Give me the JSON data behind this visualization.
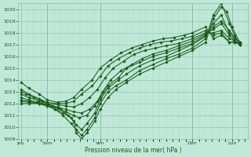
{
  "title": "",
  "xlabel": "Pression niveau de la mer( hPa )",
  "ylim": [
    1009,
    1020.5
  ],
  "yticks": [
    1009,
    1010,
    1011,
    1012,
    1013,
    1014,
    1015,
    1016,
    1017,
    1018,
    1019,
    1020
  ],
  "bg_color": "#c0e8d8",
  "grid_color_minor": "#b0d8c8",
  "grid_color_major": "#90b8a8",
  "line_color": "#1a5c1a",
  "marker": "D",
  "markersize": 1.8,
  "linewidth": 0.75,
  "xtick_labels": [
    "Jeu",
    "Sam",
    "Ven",
    "Dim",
    "Lun"
  ],
  "xtick_x": [
    0.0,
    1.0,
    3.0,
    6.5,
    8.0
  ],
  "vlines": [
    1.0,
    3.0,
    6.5,
    8.0
  ],
  "xlim": [
    -0.1,
    8.6
  ],
  "series": [
    [
      0.0,
      1013.0,
      0.2,
      1012.8,
      0.5,
      1012.5,
      0.8,
      1012.2,
      1.0,
      1012.0,
      1.2,
      1011.8,
      1.5,
      1011.5,
      1.8,
      1011.0,
      2.0,
      1010.5,
      2.1,
      1009.5,
      2.3,
      1009.0,
      2.5,
      1009.5,
      2.8,
      1010.5,
      3.0,
      1011.5,
      3.3,
      1012.5,
      3.6,
      1013.2,
      4.0,
      1013.8,
      4.5,
      1014.5,
      5.0,
      1015.0,
      5.5,
      1015.5,
      6.0,
      1016.0,
      6.5,
      1016.5,
      7.0,
      1017.2,
      7.3,
      1019.2,
      7.6,
      1020.2,
      7.8,
      1019.8,
      8.0,
      1018.5,
      8.3,
      1017.2
    ],
    [
      0.0,
      1012.5,
      0.3,
      1012.3,
      0.6,
      1012.1,
      0.8,
      1012.0,
      1.0,
      1011.9,
      1.3,
      1011.5,
      1.6,
      1011.0,
      1.9,
      1010.3,
      2.1,
      1009.8,
      2.3,
      1009.3,
      2.5,
      1009.8,
      2.8,
      1010.8,
      3.0,
      1012.0,
      3.3,
      1013.0,
      3.6,
      1013.5,
      4.0,
      1014.0,
      4.5,
      1014.8,
      5.0,
      1015.3,
      5.5,
      1015.8,
      6.0,
      1016.2,
      6.5,
      1016.7,
      7.0,
      1017.5,
      7.3,
      1019.5,
      7.6,
      1020.5,
      7.9,
      1018.8,
      8.1,
      1017.8,
      8.3,
      1017.0
    ],
    [
      0.0,
      1012.2,
      0.3,
      1012.1,
      0.7,
      1012.0,
      1.0,
      1011.8,
      1.3,
      1011.5,
      1.6,
      1011.2,
      1.9,
      1010.8,
      2.1,
      1010.2,
      2.3,
      1009.8,
      2.5,
      1010.3,
      2.8,
      1011.2,
      3.0,
      1012.3,
      3.3,
      1013.3,
      3.7,
      1014.0,
      4.0,
      1014.5,
      4.5,
      1015.2,
      5.0,
      1015.7,
      5.5,
      1016.0,
      6.0,
      1016.5,
      6.5,
      1017.0,
      7.0,
      1017.7,
      7.3,
      1018.8,
      7.6,
      1019.5,
      7.9,
      1018.0,
      8.1,
      1017.5,
      8.3,
      1017.2
    ],
    [
      0.0,
      1012.0,
      0.3,
      1012.0,
      0.7,
      1012.0,
      1.0,
      1011.8,
      1.4,
      1011.6,
      1.7,
      1011.3,
      2.0,
      1011.0,
      2.2,
      1010.8,
      2.5,
      1011.0,
      2.8,
      1011.8,
      3.0,
      1012.5,
      3.3,
      1013.5,
      3.7,
      1014.2,
      4.0,
      1015.0,
      4.5,
      1015.5,
      5.0,
      1016.0,
      5.5,
      1016.3,
      6.0,
      1016.7,
      6.5,
      1017.1,
      7.0,
      1017.8,
      7.3,
      1018.5,
      7.6,
      1019.0,
      7.9,
      1018.2,
      8.1,
      1017.6,
      8.3,
      1017.2
    ],
    [
      0.0,
      1012.3,
      0.3,
      1012.2,
      0.7,
      1012.0,
      1.0,
      1011.9,
      1.4,
      1011.7,
      1.7,
      1011.5,
      2.0,
      1011.3,
      2.3,
      1011.2,
      2.6,
      1011.5,
      2.9,
      1012.2,
      3.1,
      1013.0,
      3.4,
      1014.0,
      3.8,
      1014.8,
      4.2,
      1015.3,
      4.6,
      1015.8,
      5.0,
      1016.2,
      5.5,
      1016.5,
      6.0,
      1016.9,
      6.5,
      1017.3,
      7.0,
      1017.9,
      7.3,
      1018.3,
      7.6,
      1018.8,
      7.9,
      1017.8,
      8.1,
      1017.3,
      8.3,
      1017.1
    ],
    [
      0.0,
      1012.8,
      0.3,
      1012.5,
      0.7,
      1012.2,
      1.0,
      1012.0,
      1.4,
      1011.9,
      1.7,
      1011.8,
      2.0,
      1011.7,
      2.3,
      1012.0,
      2.6,
      1012.5,
      2.9,
      1013.2,
      3.2,
      1014.2,
      3.5,
      1015.0,
      3.9,
      1015.6,
      4.3,
      1016.2,
      4.7,
      1016.5,
      5.1,
      1016.7,
      5.5,
      1016.9,
      6.0,
      1017.1,
      6.5,
      1017.5,
      7.0,
      1018.0,
      7.3,
      1018.0,
      7.6,
      1018.2,
      7.9,
      1017.5,
      8.1,
      1017.3,
      8.3,
      1017.0
    ],
    [
      0.0,
      1013.2,
      0.3,
      1012.8,
      0.7,
      1012.4,
      1.0,
      1012.1,
      1.4,
      1012.0,
      1.7,
      1012.0,
      2.0,
      1012.2,
      2.3,
      1012.8,
      2.7,
      1013.5,
      3.0,
      1014.3,
      3.3,
      1015.2,
      3.7,
      1015.8,
      4.1,
      1016.3,
      4.5,
      1016.7,
      4.9,
      1017.0,
      5.3,
      1017.2,
      5.7,
      1017.3,
      6.1,
      1017.5,
      6.5,
      1017.7,
      7.0,
      1018.2,
      7.3,
      1017.8,
      7.6,
      1018.0,
      7.9,
      1017.2,
      8.1,
      1017.2,
      8.3,
      1017.0
    ],
    [
      0.0,
      1013.8,
      0.3,
      1013.3,
      0.7,
      1012.8,
      1.0,
      1012.3,
      1.4,
      1012.1,
      1.7,
      1012.2,
      2.0,
      1012.5,
      2.3,
      1013.2,
      2.7,
      1014.0,
      3.0,
      1015.0,
      3.4,
      1015.7,
      3.8,
      1016.3,
      4.2,
      1016.7,
      4.6,
      1017.0,
      5.0,
      1017.3,
      5.4,
      1017.5,
      5.8,
      1017.6,
      6.2,
      1017.8,
      6.5,
      1018.0,
      7.0,
      1018.5,
      7.3,
      1017.5,
      7.6,
      1017.8,
      7.9,
      1017.2,
      8.1,
      1017.2,
      8.3,
      1017.1
    ]
  ],
  "figsize": [
    3.2,
    2.0
  ],
  "dpi": 100
}
